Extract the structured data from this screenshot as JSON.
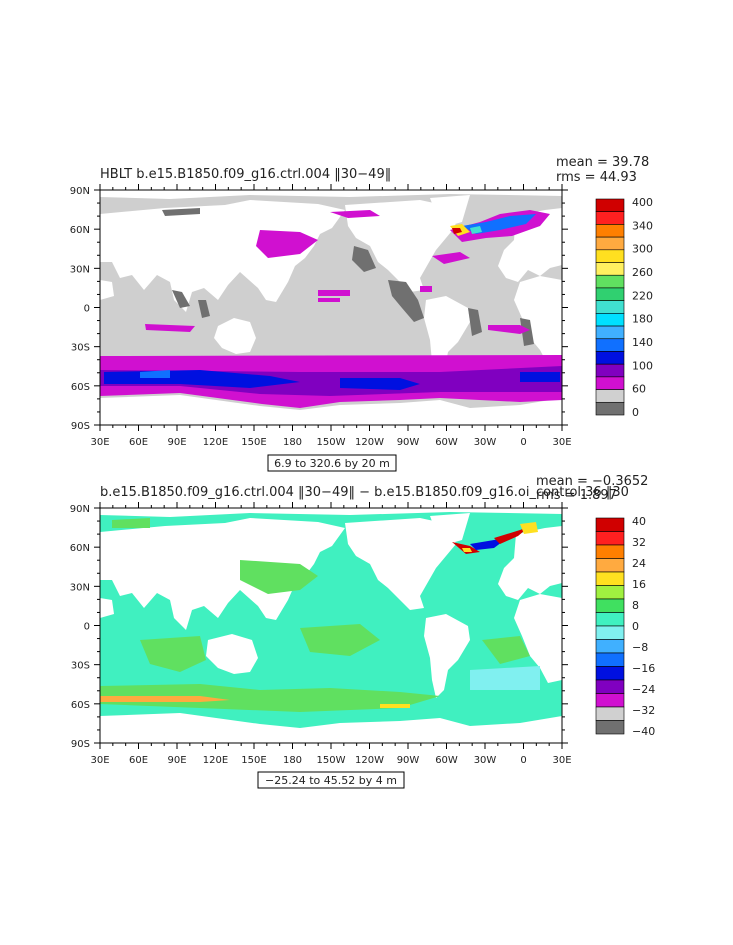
{
  "maps": [
    {
      "title": "HBLT b.e15.B1850.f09_g16.ctrl.004 ‖30−49‖",
      "stats": {
        "mean_label": "mean = 39.78",
        "rms_label": "rms = 44.93"
      },
      "range_label": "6.9 to 320.6 by 20 m",
      "lat_ticks": [
        "90N",
        "60N",
        "30N",
        "0",
        "30S",
        "60S",
        "90S"
      ],
      "lon_ticks": [
        "30E",
        "60E",
        "90E",
        "120E",
        "150E",
        "180",
        "150W",
        "120W",
        "90W",
        "60W",
        "30W",
        "0",
        "30E"
      ],
      "colorbar": {
        "labels": [
          "400",
          "340",
          "300",
          "260",
          "220",
          "180",
          "140",
          "100",
          "60",
          "0"
        ],
        "colors": [
          "#d00000",
          "#ff2020",
          "#ff7f00",
          "#ffaa40",
          "#ffe020",
          "#fff060",
          "#60e060",
          "#30d070",
          "#40e0d0",
          "#00e0ff",
          "#40b0ff",
          "#1070ff",
          "#0010e0",
          "#8000c0",
          "#d010d0",
          "#d0d0d0",
          "#707070"
        ]
      }
    },
    {
      "title": "b.e15.B1850.f09_g16.ctrl.004 ‖30−49‖ − b.e15.B1850.f09_g16.oi_control.36 ‖30",
      "stats": {
        "mean_label": "mean = −0.3652",
        "rms_label": "rms = 1.897"
      },
      "range_label": "−25.24 to 45.52 by 4 m",
      "lat_ticks": [
        "90N",
        "60N",
        "30N",
        "0",
        "30S",
        "60S",
        "90S"
      ],
      "lon_ticks": [
        "30E",
        "60E",
        "90E",
        "120E",
        "150E",
        "180",
        "150W",
        "120W",
        "90W",
        "60W",
        "30W",
        "0",
        "30E"
      ],
      "colorbar": {
        "labels": [
          "40",
          "32",
          "24",
          "16",
          "8",
          "0",
          "−8",
          "−16",
          "−24",
          "−32",
          "−40"
        ],
        "colors": [
          "#d00000",
          "#ff2020",
          "#ff7f00",
          "#ffaa40",
          "#ffe020",
          "#a0f040",
          "#40e060",
          "#40f0c0",
          "#80f0f0",
          "#40b0ff",
          "#1070ff",
          "#0010e0",
          "#8000c0",
          "#d010d0",
          "#d0d0d0",
          "#707070"
        ]
      }
    }
  ]
}
